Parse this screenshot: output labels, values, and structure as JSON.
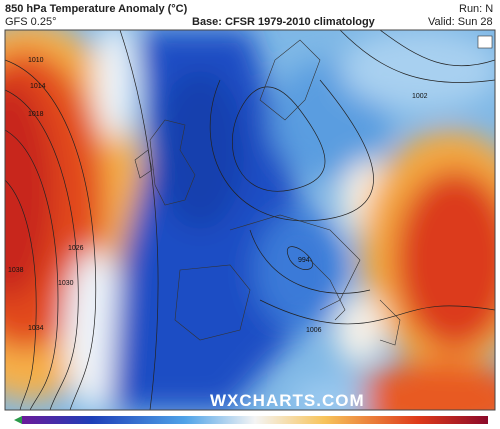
{
  "header": {
    "title": "850 hPa Temperature Anomaly (°C)",
    "model": "GFS 0.25°",
    "base": "Base: CFSR 1979-2010 climatology",
    "run": "Run: N",
    "valid": "Valid: Sun 28"
  },
  "watermark": "WXCHARTS.COM",
  "isobar_labels": [
    "1010",
    "1014",
    "1018",
    "1026",
    "1030",
    "1034",
    "1038",
    "1002",
    "994",
    "1006"
  ]
}
